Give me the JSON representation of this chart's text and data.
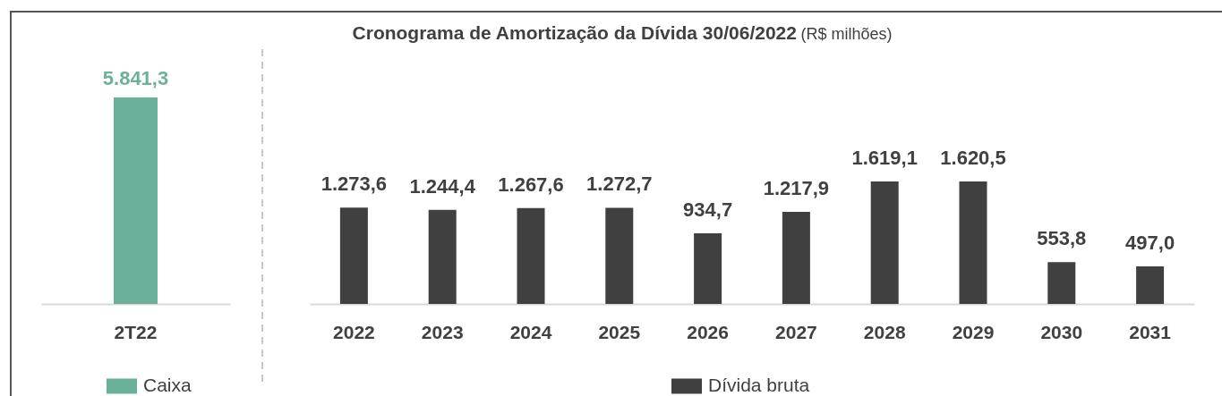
{
  "chart_data": [
    {
      "type": "bar",
      "categories": [
        "2T22"
      ],
      "series": [
        {
          "name": "Caixa",
          "color": "#6ab09a",
          "values": [
            5841.3
          ],
          "value_labels": [
            "5.841,3"
          ]
        }
      ],
      "legend": "bottom"
    },
    {
      "type": "bar",
      "title": "Cronograma de Amortização da Dívida 30/06/2022",
      "subtitle": "(R$ milhões)",
      "categories": [
        "2022",
        "2023",
        "2024",
        "2025",
        "2026",
        "2027",
        "2028",
        "2029",
        "2030",
        "2031"
      ],
      "series": [
        {
          "name": "Dívida bruta",
          "color": "#404040",
          "values": [
            1273.6,
            1244.4,
            1267.6,
            1272.7,
            934.7,
            1217.9,
            1619.1,
            1620.5,
            553.8,
            497.0
          ],
          "value_labels": [
            "1.273,6",
            "1.244,4",
            "1.267,6",
            "1.272,7",
            "934,7",
            "1.217,9",
            "1.619,1",
            "1.620,5",
            "553,8",
            "497,0"
          ]
        }
      ],
      "legend": "bottom"
    }
  ]
}
